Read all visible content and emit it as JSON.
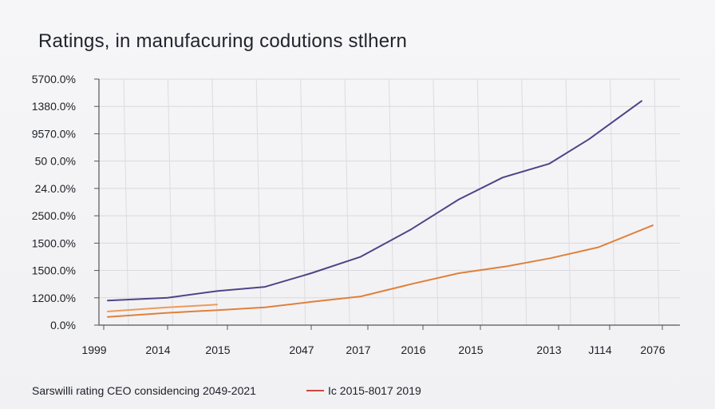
{
  "chart_data": {
    "type": "line",
    "title": "Ratings, in manufacuring codutions stlhern",
    "xlabel": "",
    "ylabel": "",
    "y_tick_labels": [
      "0.0%",
      "1200.0%",
      "1500.0%",
      "1500.0%",
      "2500.0%",
      "24.0.0%",
      "50 0.0%",
      "9570.0%",
      "1380.0%",
      "5700.0%"
    ],
    "x_tick_labels": [
      "1999",
      "2014",
      "2015",
      "2047",
      "2017",
      "2016",
      "2015",
      "2013",
      "J114",
      "2076"
    ],
    "ylim": [
      0,
      9
    ],
    "grid": true,
    "series": [
      {
        "name": "Sarswilli rating CEO considencing 2049-2021",
        "color": "#4e4586",
        "values": [
          0.9,
          1.0,
          1.25,
          1.4,
          1.9,
          2.5,
          3.5,
          4.6,
          5.4,
          5.9,
          6.8,
          8.2
        ]
      },
      {
        "name": "Ic 2015-8017 2019",
        "color": "#e0803a",
        "values": [
          0.3,
          0.45,
          0.55,
          0.65,
          0.85,
          1.05,
          1.5,
          1.9,
          2.15,
          2.45,
          2.85,
          3.65
        ]
      },
      {
        "name": "",
        "color": "#ee9a58",
        "values": [
          0.5,
          0.65,
          0.75
        ]
      }
    ],
    "legend": [
      {
        "label": "Sarswilli rating CEO considencing 2049-2021",
        "color": ""
      },
      {
        "label": "Ic 2015-8017 2019",
        "color": "#c94a3a"
      }
    ]
  }
}
